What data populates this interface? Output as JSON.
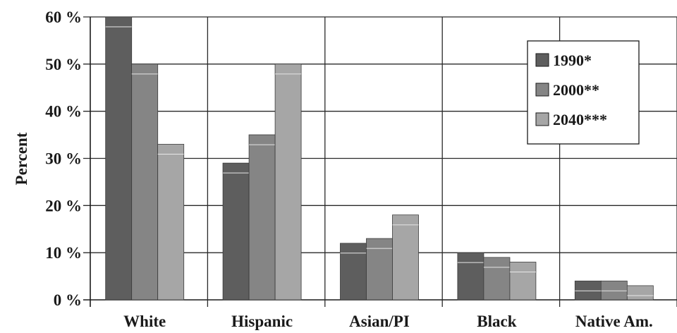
{
  "chart_data": {
    "type": "bar",
    "categories": [
      "White",
      "Hispanic",
      "Asian/PI",
      "Black",
      "Native Am."
    ],
    "series": [
      {
        "name": "1990*",
        "values": [
          60,
          29,
          12,
          10,
          4
        ]
      },
      {
        "name": "2000**",
        "values": [
          50,
          35,
          13,
          9,
          4
        ]
      },
      {
        "name": "2040***",
        "values": [
          33,
          50,
          18,
          8,
          3
        ]
      }
    ],
    "ylabel": "Percent",
    "xlabel": "",
    "ylim": [
      0,
      60
    ],
    "yticks": [
      "0 %",
      "10 %",
      "20 %",
      "30 %",
      "40 %",
      "50 %",
      "60 %"
    ],
    "grid": true,
    "legend_position": "top-right",
    "colors": {
      "1990*": "#5e5e5e",
      "2000**": "#858585",
      "2040***": "#a6a6a6"
    }
  }
}
